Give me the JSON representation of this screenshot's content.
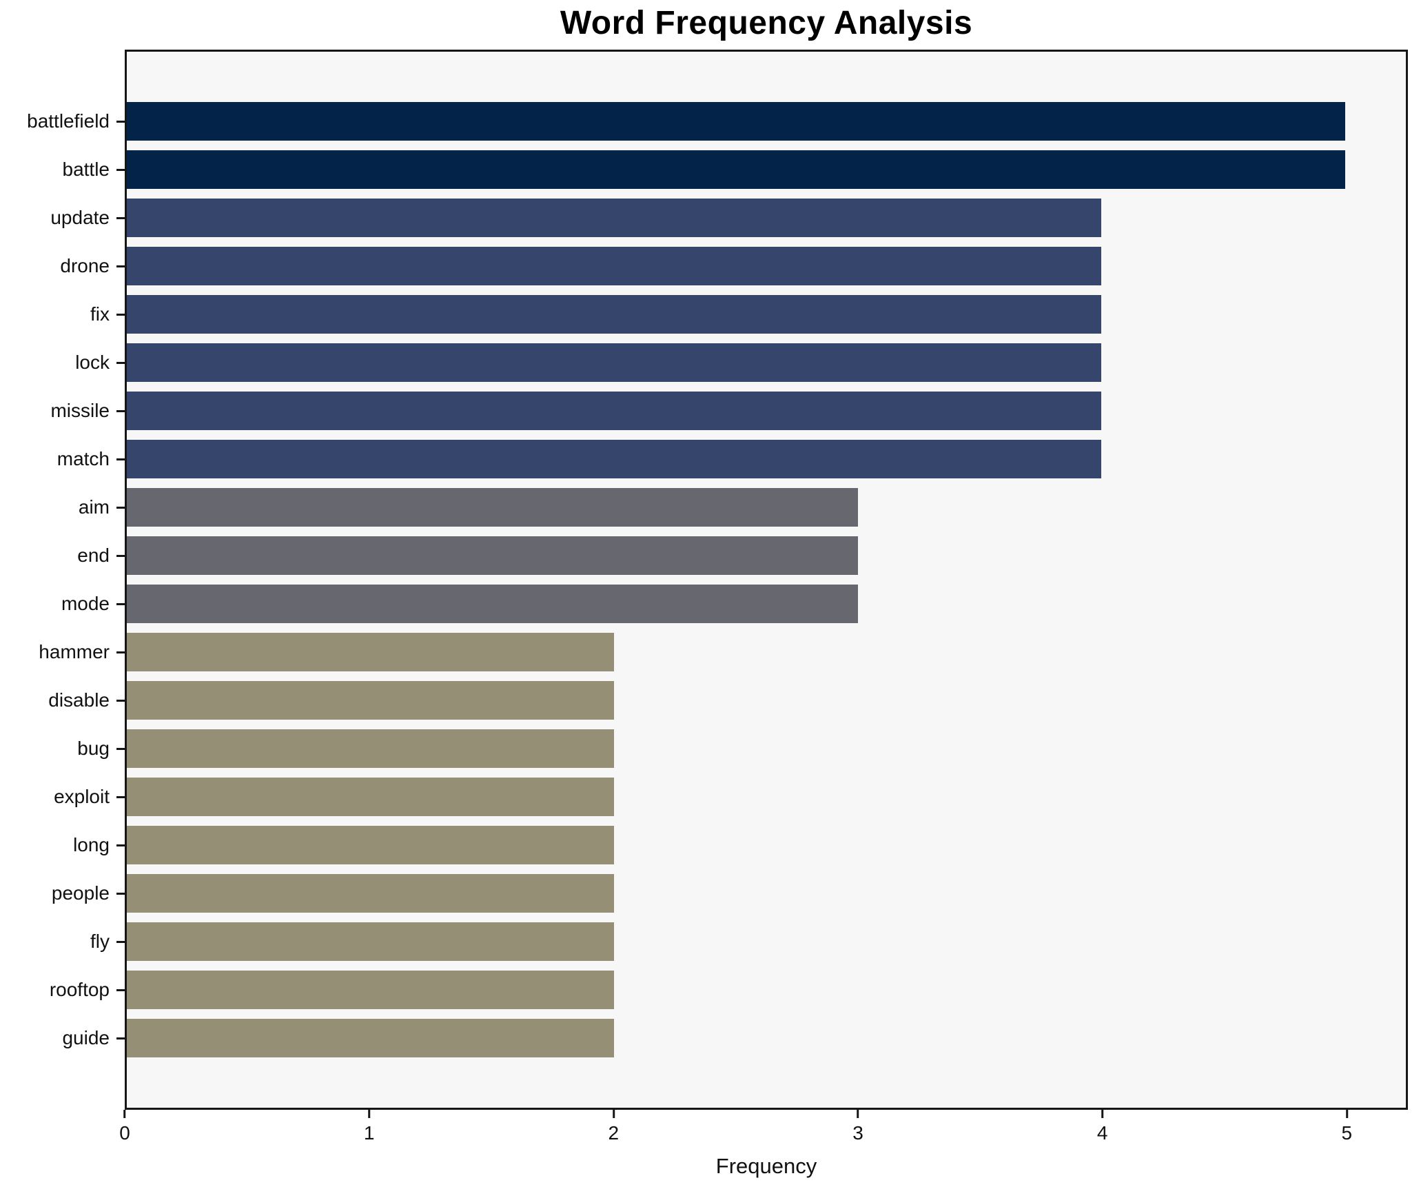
{
  "figure": {
    "background": "#ffffff",
    "plot_background": "#f7f7f7",
    "spine_color": "#161616",
    "text_color": "#111111"
  },
  "chart_data": {
    "type": "bar",
    "orientation": "horizontal",
    "title": "Word Frequency Analysis",
    "xlabel": "Frequency",
    "ylabel": "",
    "categories": [
      "battlefield",
      "battle",
      "update",
      "drone",
      "fix",
      "lock",
      "missile",
      "match",
      "aim",
      "end",
      "mode",
      "hammer",
      "disable",
      "bug",
      "exploit",
      "long",
      "people",
      "fly",
      "rooftop",
      "guide"
    ],
    "values": [
      5,
      5,
      4,
      4,
      4,
      4,
      4,
      4,
      3,
      3,
      3,
      2,
      2,
      2,
      2,
      2,
      2,
      2,
      2,
      2
    ],
    "xlim": [
      0,
      5.25
    ],
    "xticks": [
      0,
      1,
      2,
      3,
      4,
      5
    ],
    "grid": false,
    "legend": null,
    "bar_colors_by_value": {
      "5": "#032348",
      "4": "#36456b",
      "3": "#67686f",
      "2": "#958f75"
    }
  }
}
